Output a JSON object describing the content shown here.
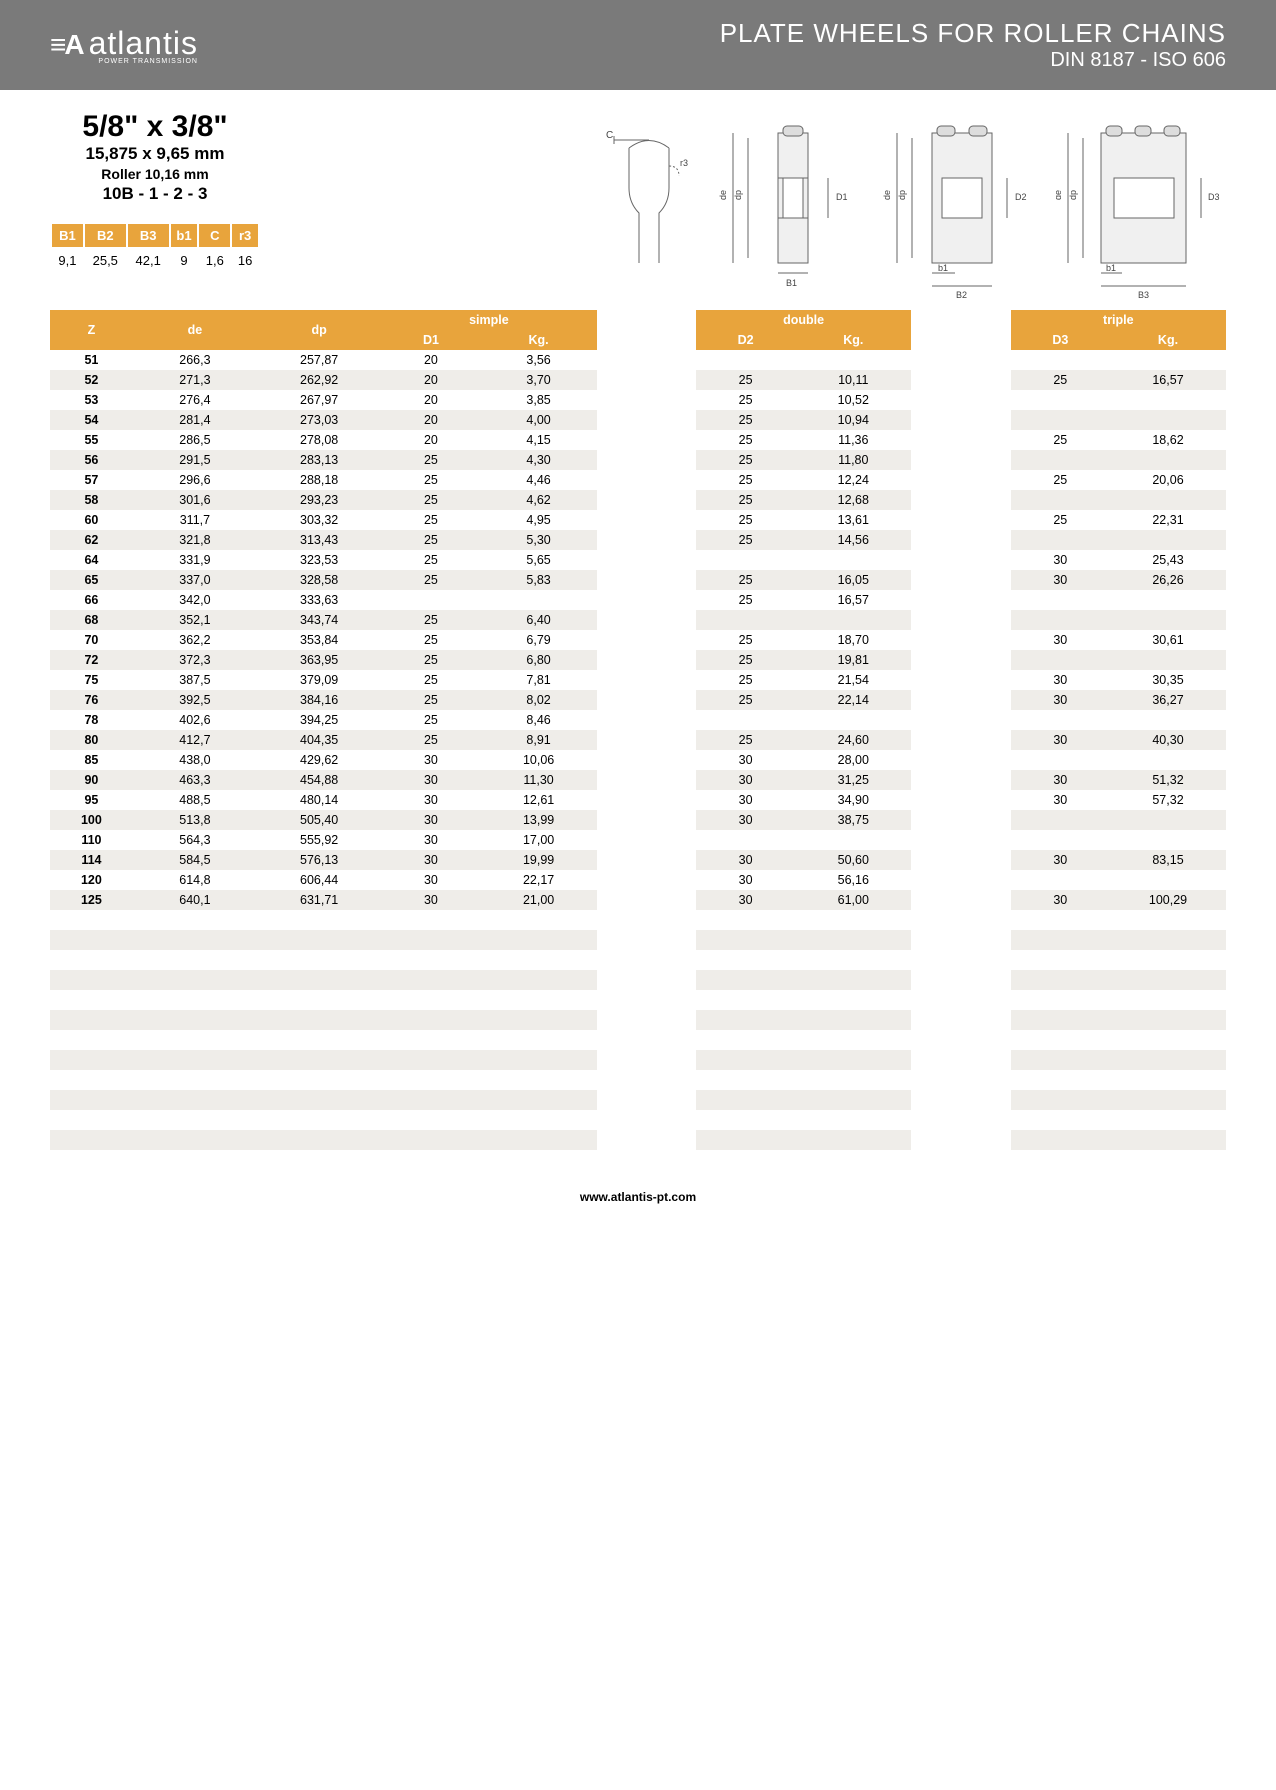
{
  "header": {
    "logo_text": "atlantis",
    "logo_sub": "POWER TRANSMISSION",
    "title": "PLATE WHEELS FOR ROLLER CHAINS",
    "subtitle": "DIN 8187 - ISO 606"
  },
  "spec": {
    "main": "5/8\" x 3/8\"",
    "mm": "15,875 x 9,65 mm",
    "roller": "Roller 10,16 mm",
    "code": "10B - 1 - 2 - 3"
  },
  "small_table": {
    "headers": [
      "B1",
      "B2",
      "B3",
      "b1",
      "C",
      "r3"
    ],
    "values": [
      "9,1",
      "25,5",
      "42,1",
      "9",
      "1,6",
      "16"
    ]
  },
  "columns": {
    "z": "Z",
    "de": "de",
    "dp": "dp",
    "simple": "simple",
    "d1": "D1",
    "kg1": "Kg.",
    "double": "double",
    "d2": "D2",
    "kg2": "Kg.",
    "triple": "triple",
    "d3": "D3",
    "kg3": "Kg."
  },
  "rows": [
    {
      "z": "51",
      "de": "266,3",
      "dp": "257,87",
      "d1": "20",
      "kg1": "3,56",
      "d2": "",
      "kg2": "",
      "d3": "",
      "kg3": ""
    },
    {
      "z": "52",
      "de": "271,3",
      "dp": "262,92",
      "d1": "20",
      "kg1": "3,70",
      "d2": "25",
      "kg2": "10,11",
      "d3": "25",
      "kg3": "16,57"
    },
    {
      "z": "53",
      "de": "276,4",
      "dp": "267,97",
      "d1": "20",
      "kg1": "3,85",
      "d2": "25",
      "kg2": "10,52",
      "d3": "",
      "kg3": ""
    },
    {
      "z": "54",
      "de": "281,4",
      "dp": "273,03",
      "d1": "20",
      "kg1": "4,00",
      "d2": "25",
      "kg2": "10,94",
      "d3": "",
      "kg3": ""
    },
    {
      "z": "55",
      "de": "286,5",
      "dp": "278,08",
      "d1": "20",
      "kg1": "4,15",
      "d2": "25",
      "kg2": "11,36",
      "d3": "25",
      "kg3": "18,62"
    },
    {
      "z": "56",
      "de": "291,5",
      "dp": "283,13",
      "d1": "25",
      "kg1": "4,30",
      "d2": "25",
      "kg2": "11,80",
      "d3": "",
      "kg3": ""
    },
    {
      "z": "57",
      "de": "296,6",
      "dp": "288,18",
      "d1": "25",
      "kg1": "4,46",
      "d2": "25",
      "kg2": "12,24",
      "d3": "25",
      "kg3": "20,06"
    },
    {
      "z": "58",
      "de": "301,6",
      "dp": "293,23",
      "d1": "25",
      "kg1": "4,62",
      "d2": "25",
      "kg2": "12,68",
      "d3": "",
      "kg3": ""
    },
    {
      "z": "60",
      "de": "311,7",
      "dp": "303,32",
      "d1": "25",
      "kg1": "4,95",
      "d2": "25",
      "kg2": "13,61",
      "d3": "25",
      "kg3": "22,31"
    },
    {
      "z": "62",
      "de": "321,8",
      "dp": "313,43",
      "d1": "25",
      "kg1": "5,30",
      "d2": "25",
      "kg2": "14,56",
      "d3": "",
      "kg3": ""
    },
    {
      "z": "64",
      "de": "331,9",
      "dp": "323,53",
      "d1": "25",
      "kg1": "5,65",
      "d2": "",
      "kg2": "",
      "d3": "30",
      "kg3": "25,43"
    },
    {
      "z": "65",
      "de": "337,0",
      "dp": "328,58",
      "d1": "25",
      "kg1": "5,83",
      "d2": "25",
      "kg2": "16,05",
      "d3": "30",
      "kg3": "26,26"
    },
    {
      "z": "66",
      "de": "342,0",
      "dp": "333,63",
      "d1": "",
      "kg1": "",
      "d2": "25",
      "kg2": "16,57",
      "d3": "",
      "kg3": ""
    },
    {
      "z": "68",
      "de": "352,1",
      "dp": "343,74",
      "d1": "25",
      "kg1": "6,40",
      "d2": "",
      "kg2": "",
      "d3": "",
      "kg3": ""
    },
    {
      "z": "70",
      "de": "362,2",
      "dp": "353,84",
      "d1": "25",
      "kg1": "6,79",
      "d2": "25",
      "kg2": "18,70",
      "d3": "30",
      "kg3": "30,61"
    },
    {
      "z": "72",
      "de": "372,3",
      "dp": "363,95",
      "d1": "25",
      "kg1": "6,80",
      "d2": "25",
      "kg2": "19,81",
      "d3": "",
      "kg3": ""
    },
    {
      "z": "75",
      "de": "387,5",
      "dp": "379,09",
      "d1": "25",
      "kg1": "7,81",
      "d2": "25",
      "kg2": "21,54",
      "d3": "30",
      "kg3": "30,35"
    },
    {
      "z": "76",
      "de": "392,5",
      "dp": "384,16",
      "d1": "25",
      "kg1": "8,02",
      "d2": "25",
      "kg2": "22,14",
      "d3": "30",
      "kg3": "36,27"
    },
    {
      "z": "78",
      "de": "402,6",
      "dp": "394,25",
      "d1": "25",
      "kg1": "8,46",
      "d2": "",
      "kg2": "",
      "d3": "",
      "kg3": ""
    },
    {
      "z": "80",
      "de": "412,7",
      "dp": "404,35",
      "d1": "25",
      "kg1": "8,91",
      "d2": "25",
      "kg2": "24,60",
      "d3": "30",
      "kg3": "40,30"
    },
    {
      "z": "85",
      "de": "438,0",
      "dp": "429,62",
      "d1": "30",
      "kg1": "10,06",
      "d2": "30",
      "kg2": "28,00",
      "d3": "",
      "kg3": ""
    },
    {
      "z": "90",
      "de": "463,3",
      "dp": "454,88",
      "d1": "30",
      "kg1": "11,30",
      "d2": "30",
      "kg2": "31,25",
      "d3": "30",
      "kg3": "51,32"
    },
    {
      "z": "95",
      "de": "488,5",
      "dp": "480,14",
      "d1": "30",
      "kg1": "12,61",
      "d2": "30",
      "kg2": "34,90",
      "d3": "30",
      "kg3": "57,32"
    },
    {
      "z": "100",
      "de": "513,8",
      "dp": "505,40",
      "d1": "30",
      "kg1": "13,99",
      "d2": "30",
      "kg2": "38,75",
      "d3": "",
      "kg3": ""
    },
    {
      "z": "110",
      "de": "564,3",
      "dp": "555,92",
      "d1": "30",
      "kg1": "17,00",
      "d2": "",
      "kg2": "",
      "d3": "",
      "kg3": ""
    },
    {
      "z": "114",
      "de": "584,5",
      "dp": "576,13",
      "d1": "30",
      "kg1": "19,99",
      "d2": "30",
      "kg2": "50,60",
      "d3": "30",
      "kg3": "83,15"
    },
    {
      "z": "120",
      "de": "614,8",
      "dp": "606,44",
      "d1": "30",
      "kg1": "22,17",
      "d2": "30",
      "kg2": "56,16",
      "d3": "",
      "kg3": ""
    },
    {
      "z": "125",
      "de": "640,1",
      "dp": "631,71",
      "d1": "30",
      "kg1": "21,00",
      "d2": "30",
      "kg2": "61,00",
      "d3": "30",
      "kg3": "100,29"
    }
  ],
  "empty_rows": 12,
  "footer": "www.atlantis-pt.com",
  "colors": {
    "header_bg": "#7a7a7a",
    "accent": "#e8a43c",
    "row_alt": "#efede9"
  }
}
